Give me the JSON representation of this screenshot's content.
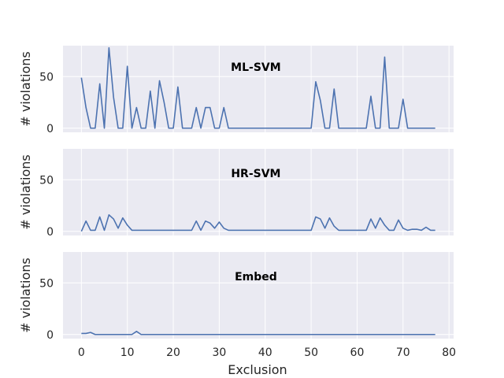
{
  "chart_data": {
    "type": "line",
    "xlabel": "Exclusion",
    "xlim": [
      -4,
      81
    ],
    "xticks": [
      0,
      10,
      20,
      30,
      40,
      50,
      60,
      70,
      80
    ],
    "ylabel": "# violations",
    "ylim": [
      -4,
      80
    ],
    "yticks": [
      0,
      50
    ],
    "grid": true,
    "background": "#eaeaf2",
    "line_color": "#4c72b0",
    "panels": [
      {
        "title": "ML-SVM",
        "x": [
          0,
          1,
          2,
          3,
          4,
          5,
          6,
          7,
          8,
          9,
          10,
          11,
          12,
          13,
          14,
          15,
          16,
          17,
          18,
          19,
          20,
          21,
          22,
          23,
          24,
          25,
          26,
          27,
          28,
          29,
          30,
          31,
          32,
          33,
          34,
          35,
          36,
          37,
          38,
          39,
          40,
          41,
          42,
          43,
          44,
          45,
          46,
          47,
          48,
          49,
          50,
          51,
          52,
          53,
          54,
          55,
          56,
          57,
          58,
          59,
          60,
          61,
          62,
          63,
          64,
          65,
          66,
          67,
          68,
          69,
          70,
          71,
          72,
          73,
          74,
          75,
          76,
          77
        ],
        "values": [
          49,
          20,
          0,
          0,
          43,
          0,
          78,
          30,
          0,
          0,
          60,
          0,
          20,
          0,
          0,
          36,
          0,
          46,
          25,
          0,
          0,
          40,
          0,
          0,
          0,
          20,
          0,
          20,
          20,
          0,
          0,
          20,
          0,
          0,
          0,
          0,
          0,
          0,
          0,
          0,
          0,
          0,
          0,
          0,
          0,
          0,
          0,
          0,
          0,
          0,
          0,
          45,
          27,
          0,
          0,
          38,
          0,
          0,
          0,
          0,
          0,
          0,
          0,
          31,
          0,
          0,
          69,
          0,
          0,
          0,
          28,
          0,
          0,
          0,
          0,
          0,
          0,
          0
        ]
      },
      {
        "title": "HR-SVM",
        "x": [
          0,
          1,
          2,
          3,
          4,
          5,
          6,
          7,
          8,
          9,
          10,
          11,
          12,
          13,
          14,
          15,
          16,
          17,
          18,
          19,
          20,
          21,
          22,
          23,
          24,
          25,
          26,
          27,
          28,
          29,
          30,
          31,
          32,
          33,
          34,
          35,
          36,
          37,
          38,
          39,
          40,
          41,
          42,
          43,
          44,
          45,
          46,
          47,
          48,
          49,
          50,
          51,
          52,
          53,
          54,
          55,
          56,
          57,
          58,
          59,
          60,
          61,
          62,
          63,
          64,
          65,
          66,
          67,
          68,
          69,
          70,
          71,
          72,
          73,
          74,
          75,
          76,
          77
        ],
        "values": [
          0,
          10,
          1,
          1,
          14,
          1,
          16,
          12,
          3,
          13,
          6,
          1,
          1,
          1,
          1,
          1,
          1,
          1,
          1,
          1,
          1,
          1,
          1,
          1,
          1,
          10,
          1,
          10,
          8,
          3,
          9,
          3,
          1,
          1,
          1,
          1,
          1,
          1,
          1,
          1,
          1,
          1,
          1,
          1,
          1,
          1,
          1,
          1,
          1,
          1,
          1,
          14,
          12,
          3,
          13,
          5,
          1,
          1,
          1,
          1,
          1,
          1,
          1,
          12,
          3,
          13,
          6,
          1,
          1,
          11,
          3,
          1,
          2,
          2,
          1,
          4,
          1,
          1
        ]
      },
      {
        "title": "Embed",
        "x": [
          0,
          1,
          2,
          3,
          4,
          5,
          6,
          7,
          8,
          9,
          10,
          11,
          12,
          13,
          14,
          15,
          16,
          17,
          18,
          19,
          20,
          21,
          22,
          23,
          24,
          25,
          26,
          27,
          28,
          29,
          30,
          31,
          32,
          33,
          34,
          35,
          36,
          37,
          38,
          39,
          40,
          41,
          42,
          43,
          44,
          45,
          46,
          47,
          48,
          49,
          50,
          51,
          52,
          53,
          54,
          55,
          56,
          57,
          58,
          59,
          60,
          61,
          62,
          63,
          64,
          65,
          66,
          67,
          68,
          69,
          70,
          71,
          72,
          73,
          74,
          75,
          76,
          77
        ],
        "values": [
          1,
          1,
          2,
          0,
          0,
          0,
          0,
          0,
          0,
          0,
          0,
          0,
          3,
          0,
          0,
          0,
          0,
          0,
          0,
          0,
          0,
          0,
          0,
          0,
          0,
          0,
          0,
          0,
          0,
          0,
          0,
          0,
          0,
          0,
          0,
          0,
          0,
          0,
          0,
          0,
          0,
          0,
          0,
          0,
          0,
          0,
          0,
          0,
          0,
          0,
          0,
          0,
          0,
          0,
          0,
          0,
          0,
          0,
          0,
          0,
          0,
          0,
          0,
          0,
          0,
          0,
          0,
          0,
          0,
          0,
          0,
          0,
          0,
          0,
          0,
          0,
          0,
          0
        ]
      }
    ]
  }
}
